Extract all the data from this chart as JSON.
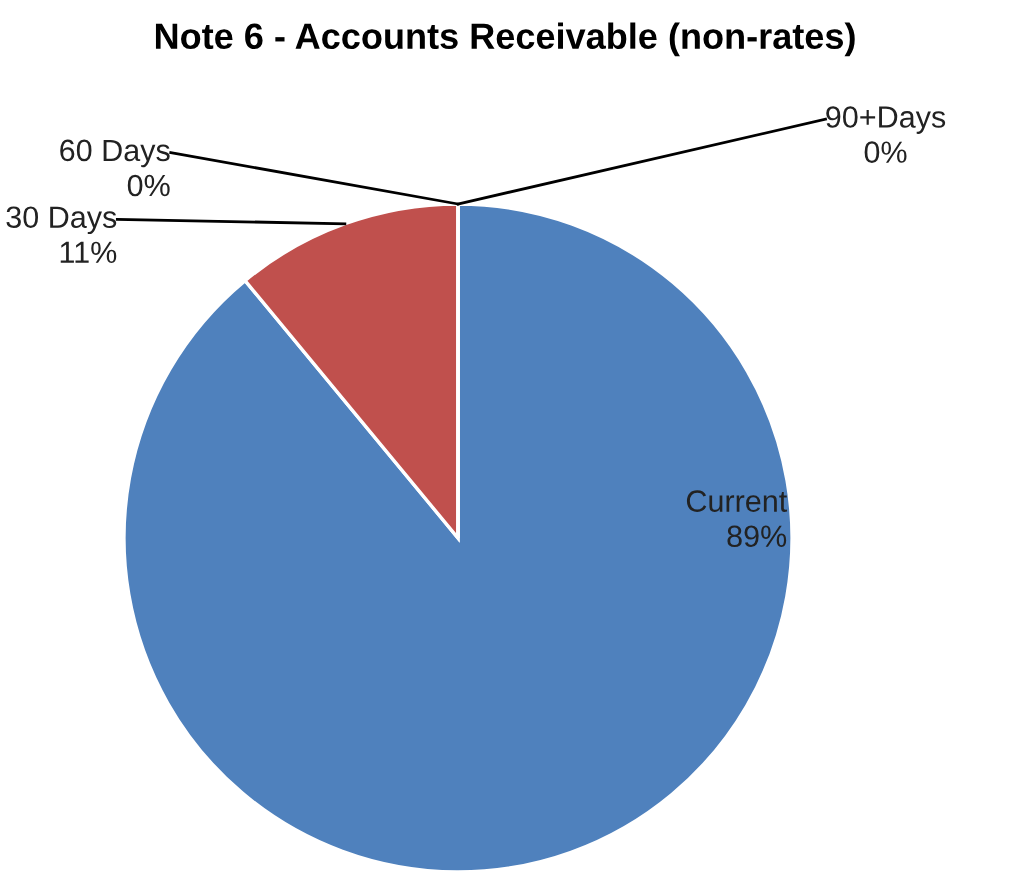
{
  "chart_data": {
    "type": "pie",
    "title": "Note 6 - Accounts Receivable (non-rates)",
    "categories": [
      "Current",
      "30 Days",
      "60 Days",
      "90+Days"
    ],
    "values": [
      89,
      11,
      0,
      0
    ],
    "colors": [
      "#4f81bd",
      "#c0504d",
      "#9bbb59",
      "#8064a2"
    ],
    "value_labels": [
      "89%",
      "11%",
      "0%",
      "0%"
    ],
    "legend": false
  }
}
